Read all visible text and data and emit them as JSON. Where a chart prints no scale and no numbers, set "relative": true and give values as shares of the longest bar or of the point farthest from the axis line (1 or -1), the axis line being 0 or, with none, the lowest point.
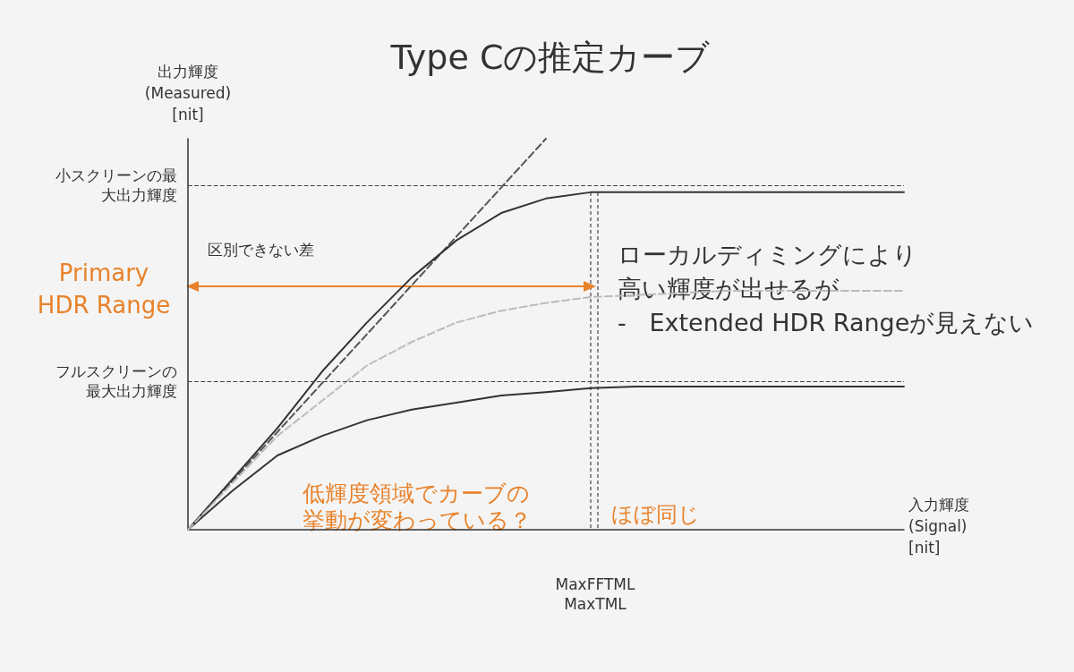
{
  "chart_data": {
    "type": "line",
    "title": "Type Cの推定カーブ",
    "xlabel": "入力輝度\n(Signal)\n[nit]",
    "ylabel": "出力輝度\n(Measured)\n[nit]",
    "relative": true,
    "grid": false,
    "marker": "none",
    "categories": [
      null,
      null,
      null,
      null,
      null,
      null,
      null,
      null,
      null,
      null,
      null,
      null,
      null,
      null,
      null,
      null,
      null
    ],
    "series": [
      {
        "color": "#555555",
        "line_style": "dashed",
        "values": [
          0,
          0.125,
          0.25,
          0.375,
          0.5,
          0.625,
          0.75,
          0.875,
          1.0,
          null,
          null,
          null,
          null,
          null,
          null,
          null,
          null
        ]
      },
      {
        "color": "#333333",
        "line_style": "solid",
        "values": [
          0,
          0.13,
          0.26,
          0.405,
          0.53,
          0.645,
          0.74,
          0.81,
          0.847,
          0.863,
          0.863,
          0.863,
          0.863,
          0.863,
          0.863,
          0.863,
          0.863
        ]
      },
      {
        "color": "#333333",
        "line_style": "solid",
        "values": [
          0,
          0.1,
          0.19,
          0.24,
          0.28,
          0.307,
          0.325,
          0.343,
          0.352,
          0.362,
          0.366,
          0.366,
          0.366,
          0.366,
          0.366,
          0.366,
          0.366
        ]
      },
      {
        "color": "#bbbbbb",
        "line_style": "dashed",
        "values": [
          0,
          0.12,
          0.24,
          0.33,
          0.42,
          0.48,
          0.53,
          0.56,
          0.58,
          0.595,
          0.6,
          0.605,
          0.611,
          0.611,
          0.611,
          0.611,
          0.611
        ]
      }
    ],
    "ref_lines": [
      {
        "axis": "y",
        "value": 0.876,
        "label": "小スクリーンの最大出力輝度"
      },
      {
        "axis": "y",
        "value": 0.378,
        "label": "フルスクリーンの最大出力輝度"
      }
    ],
    "annotations": [
      "区別できない差",
      "Primary\nHDR Range",
      "ローカルディミングにより高い輝度が出せるが\n-   Extended HDR Rangeが見えない",
      "低輝度領域でカーブの挙動が変わっている？",
      "ほぼ同じ",
      "MaxFFTML\nMaxTML"
    ]
  }
}
